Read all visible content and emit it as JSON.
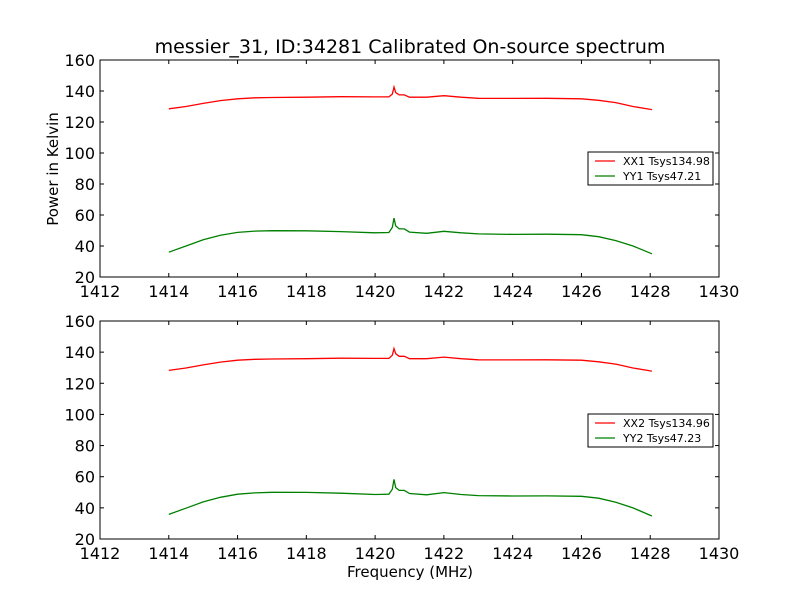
{
  "chart_data": [
    {
      "type": "line",
      "title": "messier_31, ID:34281 Calibrated On-source spectrum",
      "xlabel": "",
      "ylabel": "Power in Kelvin",
      "xlim": [
        1412,
        1430
      ],
      "ylim": [
        20,
        160
      ],
      "xticks": [
        1412,
        1414,
        1416,
        1418,
        1420,
        1422,
        1424,
        1426,
        1428,
        1430
      ],
      "yticks": [
        20,
        40,
        60,
        80,
        100,
        120,
        140,
        160
      ],
      "grid": false,
      "legend_position": "right",
      "series": [
        {
          "name": "XX1 Tsys134.98",
          "color": "#ff0000",
          "points": [
            [
              1414.0,
              128.5
            ],
            [
              1414.5,
              130.0
            ],
            [
              1415.0,
              132.0
            ],
            [
              1415.5,
              133.8
            ],
            [
              1416.0,
              135.0
            ],
            [
              1416.5,
              135.6
            ],
            [
              1417.0,
              135.8
            ],
            [
              1418.0,
              136.0
            ],
            [
              1419.0,
              136.3
            ],
            [
              1420.0,
              136.2
            ],
            [
              1420.4,
              136.2
            ],
            [
              1420.5,
              138.0
            ],
            [
              1420.55,
              142.5
            ],
            [
              1420.6,
              139.0
            ],
            [
              1420.7,
              137.5
            ],
            [
              1420.85,
              137.5
            ],
            [
              1421.0,
              136.0
            ],
            [
              1421.5,
              136.0
            ],
            [
              1422.0,
              137.0
            ],
            [
              1422.5,
              136.0
            ],
            [
              1423.0,
              135.3
            ],
            [
              1424.0,
              135.2
            ],
            [
              1425.0,
              135.3
            ],
            [
              1426.0,
              135.0
            ],
            [
              1426.5,
              134.0
            ],
            [
              1427.0,
              132.5
            ],
            [
              1427.5,
              130.0
            ],
            [
              1428.05,
              128.0
            ]
          ]
        },
        {
          "name": "YY1 Tsys47.21",
          "color": "#008000",
          "points": [
            [
              1414.0,
              36.0
            ],
            [
              1414.5,
              40.0
            ],
            [
              1415.0,
              44.0
            ],
            [
              1415.5,
              47.0
            ],
            [
              1416.0,
              48.8
            ],
            [
              1416.5,
              49.6
            ],
            [
              1417.0,
              49.9
            ],
            [
              1418.0,
              49.8
            ],
            [
              1419.0,
              49.3
            ],
            [
              1420.0,
              48.5
            ],
            [
              1420.4,
              48.7
            ],
            [
              1420.5,
              52.0
            ],
            [
              1420.55,
              58.0
            ],
            [
              1420.6,
              53.0
            ],
            [
              1420.7,
              51.0
            ],
            [
              1420.85,
              51.0
            ],
            [
              1421.0,
              49.0
            ],
            [
              1421.5,
              48.2
            ],
            [
              1422.0,
              49.5
            ],
            [
              1422.5,
              48.5
            ],
            [
              1423.0,
              47.8
            ],
            [
              1424.0,
              47.5
            ],
            [
              1425.0,
              47.6
            ],
            [
              1426.0,
              47.3
            ],
            [
              1426.5,
              46.0
            ],
            [
              1427.0,
              43.5
            ],
            [
              1427.5,
              40.0
            ],
            [
              1428.05,
              35.0
            ]
          ]
        }
      ]
    },
    {
      "type": "line",
      "title": "",
      "xlabel": "Frequency (MHz)",
      "ylabel": "",
      "xlim": [
        1412,
        1430
      ],
      "ylim": [
        20,
        160
      ],
      "xticks": [
        1412,
        1414,
        1416,
        1418,
        1420,
        1422,
        1424,
        1426,
        1428,
        1430
      ],
      "yticks": [
        20,
        40,
        60,
        80,
        100,
        120,
        140,
        160
      ],
      "grid": false,
      "legend_position": "right",
      "series": [
        {
          "name": "XX2 Tsys134.96",
          "color": "#ff0000",
          "points": [
            [
              1414.0,
              128.3
            ],
            [
              1414.5,
              129.8
            ],
            [
              1415.0,
              131.8
            ],
            [
              1415.5,
              133.6
            ],
            [
              1416.0,
              134.8
            ],
            [
              1416.5,
              135.4
            ],
            [
              1417.0,
              135.6
            ],
            [
              1418.0,
              135.8
            ],
            [
              1419.0,
              136.1
            ],
            [
              1420.0,
              136.0
            ],
            [
              1420.4,
              136.0
            ],
            [
              1420.5,
              138.0
            ],
            [
              1420.55,
              142.3
            ],
            [
              1420.6,
              139.0
            ],
            [
              1420.7,
              137.3
            ],
            [
              1420.85,
              137.3
            ],
            [
              1421.0,
              135.8
            ],
            [
              1421.5,
              135.8
            ],
            [
              1422.0,
              136.8
            ],
            [
              1422.5,
              135.8
            ],
            [
              1423.0,
              135.1
            ],
            [
              1424.0,
              135.0
            ],
            [
              1425.0,
              135.1
            ],
            [
              1426.0,
              134.8
            ],
            [
              1426.5,
              133.8
            ],
            [
              1427.0,
              132.3
            ],
            [
              1427.5,
              129.8
            ],
            [
              1428.05,
              127.8
            ]
          ]
        },
        {
          "name": "YY2 Tsys47.23",
          "color": "#008000",
          "points": [
            [
              1414.0,
              35.8
            ],
            [
              1414.5,
              39.8
            ],
            [
              1415.0,
              43.8
            ],
            [
              1415.5,
              46.8
            ],
            [
              1416.0,
              48.8
            ],
            [
              1416.5,
              49.6
            ],
            [
              1417.0,
              50.0
            ],
            [
              1418.0,
              49.9
            ],
            [
              1419.0,
              49.4
            ],
            [
              1420.0,
              48.6
            ],
            [
              1420.4,
              48.8
            ],
            [
              1420.5,
              52.0
            ],
            [
              1420.55,
              58.3
            ],
            [
              1420.6,
              53.0
            ],
            [
              1420.7,
              51.2
            ],
            [
              1420.85,
              51.2
            ],
            [
              1421.0,
              49.2
            ],
            [
              1421.5,
              48.4
            ],
            [
              1422.0,
              49.8
            ],
            [
              1422.5,
              48.6
            ],
            [
              1423.0,
              47.9
            ],
            [
              1424.0,
              47.6
            ],
            [
              1425.0,
              47.7
            ],
            [
              1426.0,
              47.4
            ],
            [
              1426.5,
              46.2
            ],
            [
              1427.0,
              43.6
            ],
            [
              1427.5,
              40.0
            ],
            [
              1428.05,
              34.8
            ]
          ]
        }
      ]
    }
  ]
}
